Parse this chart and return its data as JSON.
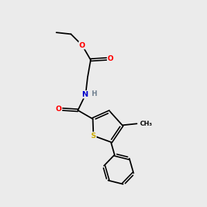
{
  "background_color": "#ebebeb",
  "bond_color": "#000000",
  "atom_colors": {
    "O": "#ff0000",
    "N": "#0000cd",
    "S": "#ccaa00",
    "H": "#708090",
    "C": "#000000"
  },
  "figsize": [
    3.0,
    3.0
  ],
  "dpi": 100
}
